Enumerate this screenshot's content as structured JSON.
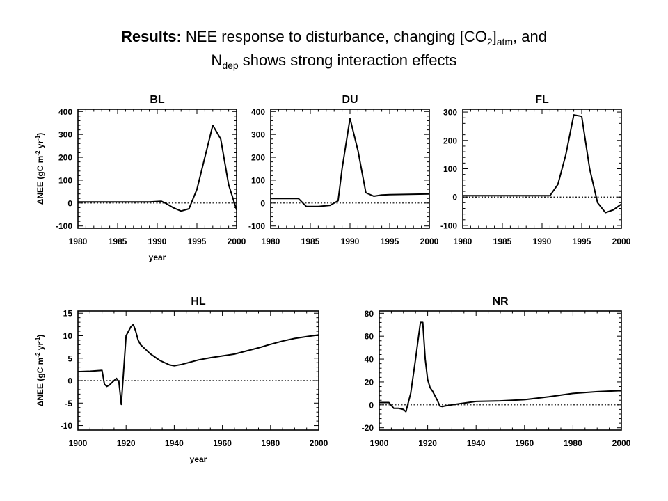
{
  "slide": {
    "title_bold": "Results:",
    "title_part1": "NEE response to disturbance, changing [CO",
    "title_sub1": "2",
    "title_part2": "]",
    "title_sub2": "atm",
    "title_part3": ", and",
    "title_line2_main": "N",
    "title_line2_sub": "dep",
    "title_line2_rest": "shows strong interaction effects"
  },
  "chart_data": [
    {
      "id": "BL",
      "type": "line",
      "title": "BL",
      "xlabel": "year",
      "ylabel": "ΔNEE (gC m-2 yr-1)",
      "xlim": [
        1980,
        2000
      ],
      "ylim": [
        -110,
        410
      ],
      "xticks": [
        1980,
        1985,
        1990,
        1995,
        2000
      ],
      "yticks": [
        -100,
        0,
        100,
        200,
        300,
        400
      ],
      "zero_line": true,
      "series": [
        {
          "x": [
            1980,
            1985,
            1989,
            1990.5,
            1991,
            1992,
            1993,
            1994,
            1995,
            1996,
            1997,
            1998,
            1999,
            2000
          ],
          "y": [
            5,
            5,
            5,
            8,
            0,
            -20,
            -35,
            -25,
            60,
            200,
            340,
            280,
            80,
            -30
          ]
        }
      ]
    },
    {
      "id": "DU",
      "type": "line",
      "title": "DU",
      "xlim": [
        1980,
        2000
      ],
      "ylim": [
        -110,
        410
      ],
      "xticks": [
        1980,
        1985,
        1990,
        1995,
        2000
      ],
      "yticks": [
        -100,
        0,
        100,
        200,
        300,
        400
      ],
      "zero_line": true,
      "series": [
        {
          "x": [
            1980,
            1983.5,
            1984.5,
            1986,
            1987.5,
            1988.5,
            1989,
            1990,
            1991,
            1992,
            1993,
            1994,
            1995,
            2000
          ],
          "y": [
            20,
            20,
            -15,
            -15,
            -10,
            10,
            150,
            370,
            230,
            45,
            30,
            35,
            37,
            40
          ]
        }
      ]
    },
    {
      "id": "FL",
      "type": "line",
      "title": "FL",
      "xlim": [
        1980,
        2000
      ],
      "ylim": [
        -110,
        310
      ],
      "xticks": [
        1980,
        1985,
        1990,
        1995,
        2000
      ],
      "yticks": [
        -100,
        0,
        100,
        200,
        300
      ],
      "zero_line": true,
      "series": [
        {
          "x": [
            1980,
            1985,
            1989,
            1991,
            1992,
            1993,
            1994,
            1995,
            1996,
            1997,
            1998,
            1999,
            2000
          ],
          "y": [
            5,
            5,
            5,
            5,
            45,
            150,
            290,
            285,
            100,
            -20,
            -55,
            -45,
            -25
          ]
        }
      ]
    },
    {
      "id": "HL",
      "type": "line",
      "title": "HL",
      "xlabel": "year",
      "ylabel": "ΔNEE (gC m-2 yr-1)",
      "xlim": [
        1900,
        2000
      ],
      "ylim": [
        -11,
        15.5
      ],
      "xticks": [
        1900,
        1920,
        1940,
        1960,
        1980,
        2000
      ],
      "yticks": [
        -10,
        -5,
        0,
        5,
        10,
        15
      ],
      "zero_line": true,
      "series": [
        {
          "x": [
            1900,
            1905,
            1910,
            1911,
            1912,
            1913,
            1915,
            1916,
            1917,
            1918,
            1920,
            1922,
            1923,
            1924,
            1925,
            1926,
            1928,
            1930,
            1934,
            1938,
            1940,
            1943,
            1950,
            1955,
            1960,
            1965,
            1970,
            1975,
            1980,
            1985,
            1990,
            1995,
            2000
          ],
          "y": [
            2,
            2.1,
            2.3,
            -0.8,
            -1.3,
            -1,
            0,
            0.5,
            -0.2,
            -5.3,
            10,
            12,
            12.5,
            11,
            9,
            8,
            7,
            6,
            4.5,
            3.5,
            3.3,
            3.6,
            4.6,
            5.1,
            5.5,
            5.9,
            6.6,
            7.3,
            8.1,
            8.8,
            9.4,
            9.8,
            10.2
          ]
        }
      ]
    },
    {
      "id": "NR",
      "type": "line",
      "title": "NR",
      "xlim": [
        1900,
        2000
      ],
      "ylim": [
        -22,
        82
      ],
      "xticks": [
        1900,
        1920,
        1940,
        1960,
        1980,
        2000
      ],
      "yticks": [
        -20,
        0,
        20,
        40,
        60,
        80
      ],
      "zero_line": true,
      "series": [
        {
          "x": [
            1900,
            1904,
            1906,
            1908,
            1910,
            1911,
            1913,
            1915,
            1917,
            1918,
            1919,
            1920,
            1921,
            1922,
            1924,
            1925,
            1926,
            1927,
            1930,
            1940,
            1950,
            1960,
            1970,
            1980,
            1990,
            2000
          ],
          "y": [
            2,
            2,
            -3,
            -3,
            -4,
            -6,
            10,
            40,
            72,
            72,
            40,
            22,
            15,
            12,
            4,
            -1,
            -1.5,
            -1,
            0,
            3,
            3.5,
            4.5,
            7,
            10,
            11.5,
            12.5
          ]
        }
      ]
    }
  ]
}
